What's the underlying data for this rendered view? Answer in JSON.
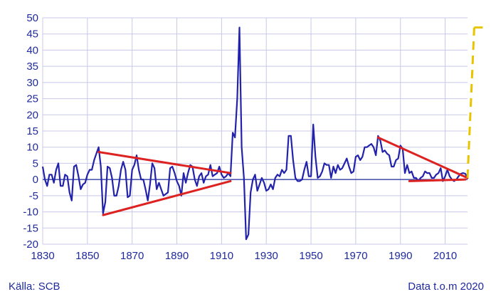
{
  "chart_data": {
    "type": "line",
    "xlim": [
      1830,
      2020
    ],
    "ylim": [
      -20,
      50
    ],
    "x_ticks": [
      1830,
      1850,
      1870,
      1890,
      1910,
      1930,
      1950,
      1970,
      1990,
      2010
    ],
    "y_ticks": [
      -20,
      -15,
      -10,
      -5,
      0,
      5,
      10,
      15,
      20,
      25,
      30,
      35,
      40,
      45,
      50
    ],
    "grid": true,
    "series": [
      {
        "color": "#2222aa",
        "points": [
          [
            1830,
            4
          ],
          [
            1831,
            0
          ],
          [
            1832,
            -2
          ],
          [
            1833,
            1.5
          ],
          [
            1834,
            1.5
          ],
          [
            1835,
            -1
          ],
          [
            1836,
            3
          ],
          [
            1837,
            5
          ],
          [
            1838,
            -2
          ],
          [
            1839,
            -2
          ],
          [
            1840,
            1.5
          ],
          [
            1841,
            1
          ],
          [
            1842,
            -4
          ],
          [
            1843,
            -6.5
          ],
          [
            1844,
            4
          ],
          [
            1845,
            4.5
          ],
          [
            1846,
            1
          ],
          [
            1847,
            -3
          ],
          [
            1848,
            -1.5
          ],
          [
            1849,
            -1
          ],
          [
            1850,
            1.5
          ],
          [
            1851,
            3
          ],
          [
            1852,
            3
          ],
          [
            1853,
            6
          ],
          [
            1854,
            8
          ],
          [
            1855,
            10
          ],
          [
            1856,
            4
          ],
          [
            1857,
            -10.5
          ],
          [
            1858,
            -7
          ],
          [
            1859,
            4
          ],
          [
            1860,
            3.5
          ],
          [
            1861,
            0.5
          ],
          [
            1862,
            -5
          ],
          [
            1863,
            -5
          ],
          [
            1864,
            -2
          ],
          [
            1865,
            3
          ],
          [
            1866,
            5.5
          ],
          [
            1867,
            3
          ],
          [
            1868,
            -5.5
          ],
          [
            1869,
            -5
          ],
          [
            1870,
            3
          ],
          [
            1871,
            4.5
          ],
          [
            1872,
            7.5
          ],
          [
            1873,
            3
          ],
          [
            1874,
            0
          ],
          [
            1875,
            0
          ],
          [
            1876,
            -3
          ],
          [
            1877,
            -6.5
          ],
          [
            1878,
            -1.5
          ],
          [
            1879,
            5
          ],
          [
            1880,
            3.5
          ],
          [
            1881,
            -3
          ],
          [
            1882,
            -1
          ],
          [
            1883,
            -3
          ],
          [
            1884,
            -5
          ],
          [
            1885,
            -4.5
          ],
          [
            1886,
            -4
          ],
          [
            1887,
            3.5
          ],
          [
            1888,
            4
          ],
          [
            1889,
            2
          ],
          [
            1890,
            -0.5
          ],
          [
            1891,
            -2
          ],
          [
            1892,
            -5
          ],
          [
            1893,
            2
          ],
          [
            1894,
            -1
          ],
          [
            1895,
            2
          ],
          [
            1896,
            4.5
          ],
          [
            1897,
            4
          ],
          [
            1898,
            0
          ],
          [
            1899,
            -2
          ],
          [
            1900,
            1
          ],
          [
            1901,
            2
          ],
          [
            1902,
            -1
          ],
          [
            1903,
            1
          ],
          [
            1904,
            1.5
          ],
          [
            1905,
            4.5
          ],
          [
            1906,
            1
          ],
          [
            1907,
            1.5
          ],
          [
            1908,
            2
          ],
          [
            1909,
            4
          ],
          [
            1910,
            1.5
          ],
          [
            1911,
            0.5
          ],
          [
            1912,
            1
          ],
          [
            1913,
            2
          ],
          [
            1914,
            1
          ],
          [
            1915,
            14.5
          ],
          [
            1916,
            13
          ],
          [
            1917,
            25
          ],
          [
            1918,
            47
          ],
          [
            1919,
            10
          ],
          [
            1920,
            0.5
          ],
          [
            1921,
            -18.5
          ],
          [
            1922,
            -17
          ],
          [
            1923,
            -4
          ],
          [
            1924,
            0
          ],
          [
            1925,
            1.5
          ],
          [
            1926,
            -3.5
          ],
          [
            1927,
            -1.5
          ],
          [
            1928,
            0.5
          ],
          [
            1929,
            -1
          ],
          [
            1930,
            -3.5
          ],
          [
            1931,
            -3
          ],
          [
            1932,
            -1.5
          ],
          [
            1933,
            -3
          ],
          [
            1934,
            0.5
          ],
          [
            1935,
            1.5
          ],
          [
            1936,
            1
          ],
          [
            1937,
            3
          ],
          [
            1938,
            2
          ],
          [
            1939,
            3
          ],
          [
            1940,
            13.5
          ],
          [
            1941,
            13.5
          ],
          [
            1942,
            6
          ],
          [
            1943,
            0.5
          ],
          [
            1944,
            -0.5
          ],
          [
            1945,
            -0.5
          ],
          [
            1946,
            0
          ],
          [
            1947,
            3
          ],
          [
            1948,
            5.5
          ],
          [
            1949,
            1
          ],
          [
            1950,
            1
          ],
          [
            1951,
            17
          ],
          [
            1952,
            7
          ],
          [
            1953,
            0.5
          ],
          [
            1954,
            1
          ],
          [
            1955,
            2.5
          ],
          [
            1956,
            5
          ],
          [
            1957,
            4.5
          ],
          [
            1958,
            4.5
          ],
          [
            1959,
            0.5
          ],
          [
            1960,
            4
          ],
          [
            1961,
            2
          ],
          [
            1962,
            4.5
          ],
          [
            1963,
            3
          ],
          [
            1964,
            3.5
          ],
          [
            1965,
            5
          ],
          [
            1966,
            6.5
          ],
          [
            1967,
            4
          ],
          [
            1968,
            2
          ],
          [
            1969,
            2.5
          ],
          [
            1970,
            7
          ],
          [
            1971,
            7.5
          ],
          [
            1972,
            6
          ],
          [
            1973,
            7
          ],
          [
            1974,
            10
          ],
          [
            1975,
            10
          ],
          [
            1976,
            10.5
          ],
          [
            1977,
            11
          ],
          [
            1978,
            10
          ],
          [
            1979,
            7.5
          ],
          [
            1980,
            13.5
          ],
          [
            1981,
            12
          ],
          [
            1982,
            8.5
          ],
          [
            1983,
            9
          ],
          [
            1984,
            8
          ],
          [
            1985,
            7.5
          ],
          [
            1986,
            4
          ],
          [
            1987,
            4
          ],
          [
            1988,
            6
          ],
          [
            1989,
            6.5
          ],
          [
            1990,
            10.5
          ],
          [
            1991,
            9.5
          ],
          [
            1992,
            2
          ],
          [
            1993,
            4.5
          ],
          [
            1994,
            2
          ],
          [
            1995,
            2.5
          ],
          [
            1996,
            0.5
          ],
          [
            1997,
            0.5
          ],
          [
            1998,
            -0.5
          ],
          [
            1999,
            0.5
          ],
          [
            2000,
            1
          ],
          [
            2001,
            2.5
          ],
          [
            2002,
            2
          ],
          [
            2003,
            2
          ],
          [
            2004,
            0.5
          ],
          [
            2005,
            0.5
          ],
          [
            2006,
            1.5
          ],
          [
            2007,
            2
          ],
          [
            2008,
            3.5
          ],
          [
            2009,
            -0.5
          ],
          [
            2010,
            1
          ],
          [
            2011,
            3
          ],
          [
            2012,
            1
          ],
          [
            2013,
            0
          ],
          [
            2014,
            -0.5
          ],
          [
            2015,
            0
          ],
          [
            2016,
            1
          ],
          [
            2017,
            1.8
          ],
          [
            2018,
            2
          ],
          [
            2019,
            1.8
          ],
          [
            2020,
            0.5
          ]
        ]
      }
    ],
    "annotations": {
      "red_lines": [
        [
          [
            1855,
            8.5
          ],
          [
            1914,
            2
          ]
        ],
        [
          [
            1857,
            -11
          ],
          [
            1914,
            -0.5
          ]
        ],
        [
          [
            1980,
            13
          ],
          [
            2020,
            0.5
          ]
        ],
        [
          [
            1994,
            -0.5
          ],
          [
            2019,
            0
          ]
        ]
      ],
      "yellow_dashed": [
        [
          2020,
          0.5
        ],
        [
          2023,
          47
        ]
      ]
    }
  },
  "source": "Källa: SCB",
  "data_info": "Data t.o.m  2020"
}
